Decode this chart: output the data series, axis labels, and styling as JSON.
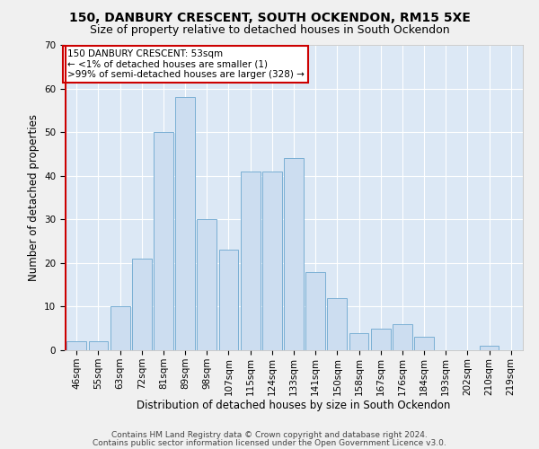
{
  "title1": "150, DANBURY CRESCENT, SOUTH OCKENDON, RM15 5XE",
  "title2": "Size of property relative to detached houses in South Ockendon",
  "xlabel": "Distribution of detached houses by size in South Ockendon",
  "ylabel": "Number of detached properties",
  "categories": [
    "46sqm",
    "55sqm",
    "63sqm",
    "72sqm",
    "81sqm",
    "89sqm",
    "98sqm",
    "107sqm",
    "115sqm",
    "124sqm",
    "133sqm",
    "141sqm",
    "150sqm",
    "158sqm",
    "167sqm",
    "176sqm",
    "184sqm",
    "193sqm",
    "202sqm",
    "210sqm",
    "219sqm"
  ],
  "values": [
    2,
    2,
    10,
    21,
    50,
    58,
    30,
    23,
    41,
    41,
    44,
    18,
    12,
    4,
    5,
    6,
    3,
    0,
    0,
    1,
    0
  ],
  "bar_color": "#ccddf0",
  "bar_edge_color": "#7aafd4",
  "highlight_line_color": "#cc0000",
  "background_color": "#dce8f5",
  "grid_color": "#ffffff",
  "annotation_text": "150 DANBURY CRESCENT: 53sqm\n← <1% of detached houses are smaller (1)\n>99% of semi-detached houses are larger (328) →",
  "annotation_box_color": "#ffffff",
  "annotation_box_edge": "#cc0000",
  "footer1": "Contains HM Land Registry data © Crown copyright and database right 2024.",
  "footer2": "Contains public sector information licensed under the Open Government Licence v3.0.",
  "ylim": [
    0,
    70
  ],
  "yticks": [
    0,
    10,
    20,
    30,
    40,
    50,
    60,
    70
  ],
  "title1_fontsize": 10,
  "title2_fontsize": 9,
  "xlabel_fontsize": 8.5,
  "ylabel_fontsize": 8.5,
  "tick_fontsize": 7.5,
  "annotation_fontsize": 7.5,
  "footer_fontsize": 6.5
}
